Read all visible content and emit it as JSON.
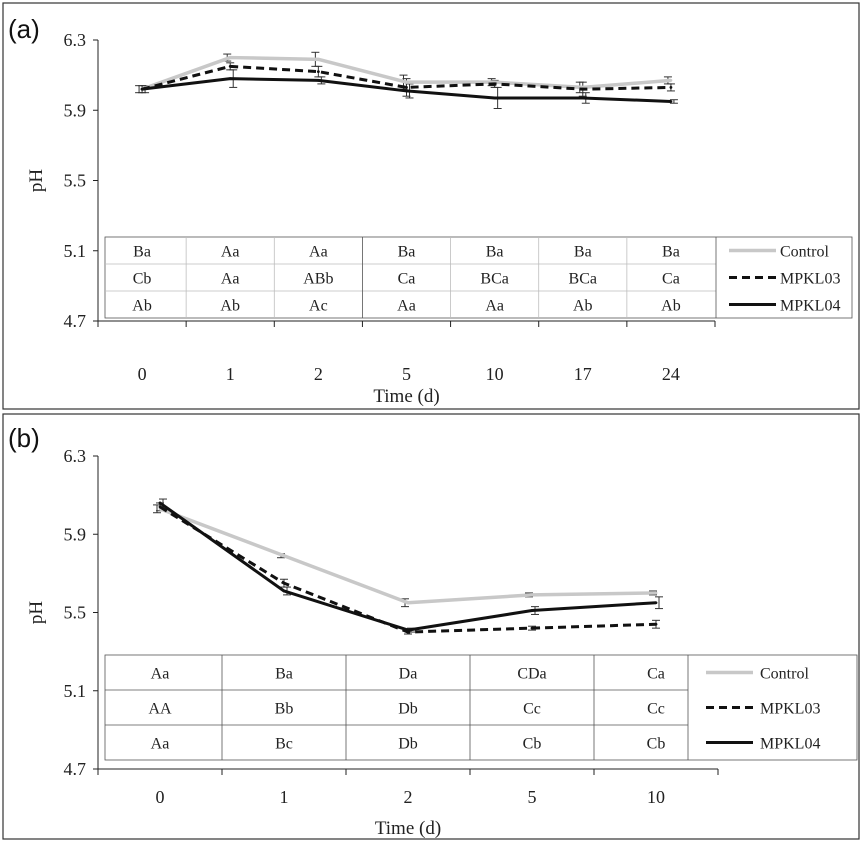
{
  "chart_data": [
    {
      "panel_label": "(a)",
      "type": "line",
      "xlabel": "Time (d)",
      "ylabel": "pH",
      "ylim": [
        4.7,
        6.3
      ],
      "yticks": [
        "6.3",
        "5.9",
        "5.5",
        "5.1",
        "4.7"
      ],
      "categories": [
        "0",
        "1",
        "2",
        "5",
        "10",
        "17",
        "24"
      ],
      "legend_position": "right, beside table",
      "series": [
        {
          "name": "Control",
          "color": "#c8c8c8",
          "dash": "solid",
          "values": [
            6.02,
            6.2,
            6.19,
            6.06,
            6.06,
            6.03,
            6.07
          ],
          "errors": [
            0.02,
            0.02,
            0.04,
            0.04,
            0.02,
            0.03,
            0.02
          ]
        },
        {
          "name": "MPKL03",
          "color": "#111111",
          "dash": "dashed",
          "values": [
            6.02,
            6.15,
            6.12,
            6.03,
            6.05,
            6.02,
            6.03
          ],
          "errors": [
            0.02,
            0.02,
            0.03,
            0.05,
            0.02,
            0.04,
            0.02
          ]
        },
        {
          "name": "MPKL04",
          "color": "#111111",
          "dash": "solid",
          "values": [
            6.02,
            6.08,
            6.07,
            6.01,
            5.97,
            5.97,
            5.95
          ],
          "errors": [
            0.02,
            0.05,
            0.02,
            0.04,
            0.06,
            0.03,
            0.01
          ]
        }
      ],
      "table": [
        [
          "Ba",
          "Aa",
          "Aa",
          "Ba",
          "Ba",
          "Ba",
          "Ba"
        ],
        [
          "Cb",
          "Aa",
          "ABb",
          "Ca",
          "BCa",
          "BCa",
          "Ca"
        ],
        [
          "Ab",
          "Ab",
          "Ac",
          "Aa",
          "Aa",
          "Ab",
          "Ab"
        ]
      ]
    },
    {
      "panel_label": "(b)",
      "type": "line",
      "xlabel": "Time (d)",
      "ylabel": "pH",
      "ylim": [
        4.7,
        6.3
      ],
      "yticks": [
        "6.3",
        "5.9",
        "5.5",
        "5.1",
        "4.7"
      ],
      "categories": [
        "0",
        "1",
        "2",
        "5",
        "10"
      ],
      "legend_position": "right, beside table",
      "series": [
        {
          "name": "Control",
          "color": "#c8c8c8",
          "dash": "solid",
          "values": [
            6.03,
            5.79,
            5.55,
            5.59,
            5.6
          ],
          "errors": [
            0.02,
            0.01,
            0.02,
            0.01,
            0.01
          ]
        },
        {
          "name": "MPKL03",
          "color": "#111111",
          "dash": "dashed",
          "values": [
            6.04,
            5.65,
            5.4,
            5.42,
            5.44
          ],
          "errors": [
            0.02,
            0.02,
            0.01,
            0.01,
            0.02
          ]
        },
        {
          "name": "MPKL04",
          "color": "#111111",
          "dash": "solid",
          "values": [
            6.06,
            5.61,
            5.41,
            5.51,
            5.55
          ],
          "errors": [
            0.02,
            0.02,
            0.01,
            0.02,
            0.03
          ]
        }
      ],
      "table": [
        [
          "Aa",
          "Ba",
          "Da",
          "CDa",
          "Ca"
        ],
        [
          "AA",
          "Bb",
          "Db",
          "Cc",
          "Cc"
        ],
        [
          "Aa",
          "Bc",
          "Db",
          "Cb",
          "Cb"
        ]
      ]
    }
  ]
}
